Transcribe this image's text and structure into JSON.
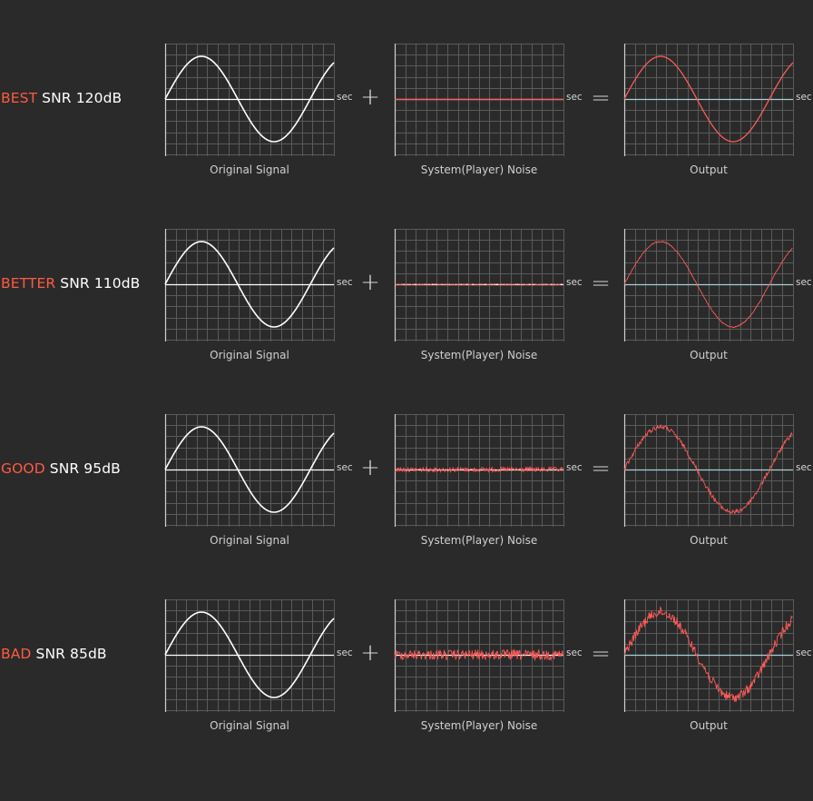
{
  "rows": [
    {
      "quality": "BEST",
      "snr": "SNR 120dB",
      "noise": 0,
      "sig_caption": "Original Signal",
      "noise_caption": "System(Player) Noise",
      "out_caption": "Output",
      "axis_label": "sec"
    },
    {
      "quality": "BETTER",
      "snr": "SNR 110dB",
      "noise": 0.6,
      "sig_caption": "Original Signal",
      "noise_caption": "System(Player) Noise",
      "out_caption": "Output",
      "axis_label": "sec"
    },
    {
      "quality": "GOOD",
      "snr": "SNR 95dB",
      "noise": 2.5,
      "sig_caption": "Original Signal",
      "noise_caption": "System(Player) Noise",
      "out_caption": "Output",
      "axis_label": "sec"
    },
    {
      "quality": "BAD",
      "snr": "SNR 85dB",
      "noise": 5.5,
      "sig_caption": "Original Signal",
      "noise_caption": "System(Player) Noise",
      "out_caption": "Output",
      "axis_label": "sec"
    }
  ],
  "operators": {
    "plus": "+",
    "equals": "="
  },
  "colors": {
    "background": "#2a2a2a",
    "grid": "#5a5a5a",
    "signal": "#ffffff",
    "noise": "#ff5a5a",
    "quality_label": "#ff5a43",
    "output_axis": "#a9cfd6"
  }
}
